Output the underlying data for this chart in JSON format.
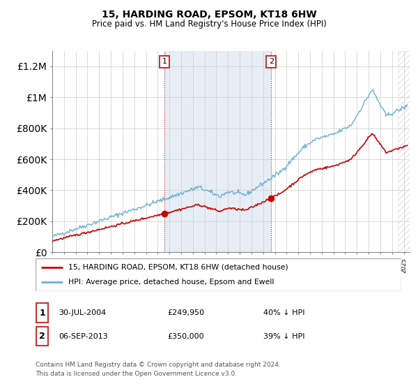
{
  "title": "15, HARDING ROAD, EPSOM, KT18 6HW",
  "subtitle": "Price paid vs. HM Land Registry's House Price Index (HPI)",
  "legend_line1": "15, HARDING ROAD, EPSOM, KT18 6HW (detached house)",
  "legend_line2": "HPI: Average price, detached house, Epsom and Ewell",
  "annotation1_date": "30-JUL-2004",
  "annotation1_price": "£249,950",
  "annotation1_hpi": "40% ↓ HPI",
  "annotation2_date": "06-SEP-2013",
  "annotation2_price": "£350,000",
  "annotation2_hpi": "39% ↓ HPI",
  "footer": "Contains HM Land Registry data © Crown copyright and database right 2024.\nThis data is licensed under the Open Government Licence v3.0.",
  "hpi_color": "#6baed6",
  "price_color": "#cc0000",
  "shading_color": "#dce6f1",
  "annotation_box_color": "#cc3333",
  "ylim_min": 0,
  "ylim_max": 1300000,
  "purchase1_year": 2004.58,
  "purchase1_price": 249950,
  "purchase2_year": 2013.68,
  "purchase2_price": 350000
}
